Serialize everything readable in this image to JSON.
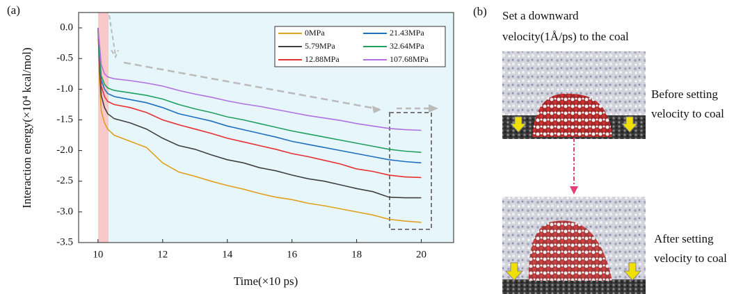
{
  "chart_data": {
    "type": "line",
    "panel_label": "(a)",
    "xlabel": "Time(×10 ps)",
    "ylabel": "Interaction energy(×10⁴ kcal/mol)",
    "x": [
      10,
      10.05,
      10.1,
      10.2,
      10.3,
      10.5,
      11,
      11.5,
      12,
      12.5,
      13,
      13.5,
      14,
      14.5,
      15,
      15.5,
      16,
      16.5,
      17,
      17.5,
      18,
      18.5,
      19,
      19.5,
      20
    ],
    "series": [
      {
        "name": "0MPa",
        "color": "#e0a020",
        "values": [
          0,
          -0.9,
          -1.35,
          -1.55,
          -1.65,
          -1.75,
          -1.85,
          -1.95,
          -2.2,
          -2.35,
          -2.42,
          -2.5,
          -2.57,
          -2.63,
          -2.7,
          -2.76,
          -2.8,
          -2.86,
          -2.9,
          -2.95,
          -3.0,
          -3.05,
          -3.12,
          -3.15,
          -3.17
        ]
      },
      {
        "name": "5.79MPa",
        "color": "#404040",
        "values": [
          0,
          -0.7,
          -1.1,
          -1.3,
          -1.4,
          -1.48,
          -1.55,
          -1.65,
          -1.8,
          -1.92,
          -1.98,
          -2.07,
          -2.15,
          -2.2,
          -2.28,
          -2.33,
          -2.4,
          -2.46,
          -2.5,
          -2.56,
          -2.62,
          -2.67,
          -2.76,
          -2.77,
          -2.77
        ]
      },
      {
        "name": "12.88MPa",
        "color": "#e83030",
        "values": [
          0,
          -0.6,
          -0.95,
          -1.12,
          -1.2,
          -1.25,
          -1.3,
          -1.38,
          -1.5,
          -1.58,
          -1.65,
          -1.72,
          -1.8,
          -1.86,
          -1.92,
          -1.98,
          -2.05,
          -2.1,
          -2.16,
          -2.22,
          -2.3,
          -2.34,
          -2.4,
          -2.43,
          -2.44
        ]
      },
      {
        "name": "21.43MPa",
        "color": "#1f6fc0",
        "values": [
          0,
          -0.5,
          -0.85,
          -1.0,
          -1.07,
          -1.12,
          -1.17,
          -1.22,
          -1.3,
          -1.4,
          -1.46,
          -1.52,
          -1.6,
          -1.66,
          -1.72,
          -1.78,
          -1.85,
          -1.9,
          -1.95,
          -2.0,
          -2.05,
          -2.1,
          -2.15,
          -2.18,
          -2.2
        ]
      },
      {
        "name": "32.64MPa",
        "color": "#20a060",
        "values": [
          0,
          -0.45,
          -0.78,
          -0.92,
          -0.98,
          -1.02,
          -1.06,
          -1.1,
          -1.16,
          -1.25,
          -1.32,
          -1.38,
          -1.45,
          -1.5,
          -1.56,
          -1.62,
          -1.68,
          -1.73,
          -1.78,
          -1.83,
          -1.88,
          -1.93,
          -1.98,
          -2.01,
          -2.03
        ]
      },
      {
        "name": "107.68MPa",
        "color": "#b070e0",
        "values": [
          0,
          -0.3,
          -0.6,
          -0.75,
          -0.8,
          -0.83,
          -0.86,
          -0.9,
          -0.95,
          -1.02,
          -1.08,
          -1.13,
          -1.19,
          -1.24,
          -1.28,
          -1.33,
          -1.38,
          -1.43,
          -1.47,
          -1.51,
          -1.56,
          -1.6,
          -1.64,
          -1.66,
          -1.67
        ]
      }
    ],
    "xlim": [
      9.4,
      21
    ],
    "xticks": [
      10,
      12,
      14,
      16,
      18,
      20
    ],
    "ylim": [
      -3.5,
      0.25
    ],
    "yticks": [
      {
        "value": 0,
        "label": "0.0"
      },
      -0.5,
      {
        "value": -1,
        "label": "-1.0"
      },
      -1.5,
      {
        "value": -2,
        "label": "-2.0"
      },
      -2.5,
      {
        "value": -3,
        "label": "-3.0"
      },
      -3.5
    ],
    "legend": "upper right",
    "grid": false
  },
  "panel_b": {
    "label": "(b)",
    "caption_lines": [
      "Set a downward",
      "velocity(1Å/ps) to the coal"
    ],
    "before_lines": [
      "Before setting",
      "velocity to coal"
    ],
    "after_lines": [
      "After setting",
      "velocity to coal"
    ]
  }
}
